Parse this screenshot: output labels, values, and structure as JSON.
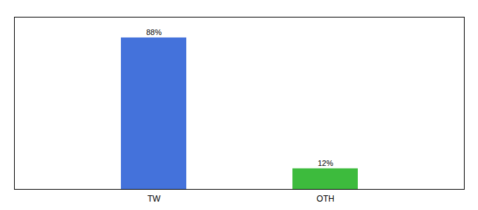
{
  "chart_data": {
    "type": "bar",
    "categories": [
      "TW",
      "OTH"
    ],
    "values": [
      88,
      12
    ],
    "colors": [
      "#4472db",
      "#3dbb3d"
    ],
    "ylim": [
      0,
      100
    ],
    "yticks": [],
    "tick_labels": "x",
    "grid": false,
    "data_labels": true,
    "value_labels": [
      "88%",
      "12%"
    ]
  }
}
